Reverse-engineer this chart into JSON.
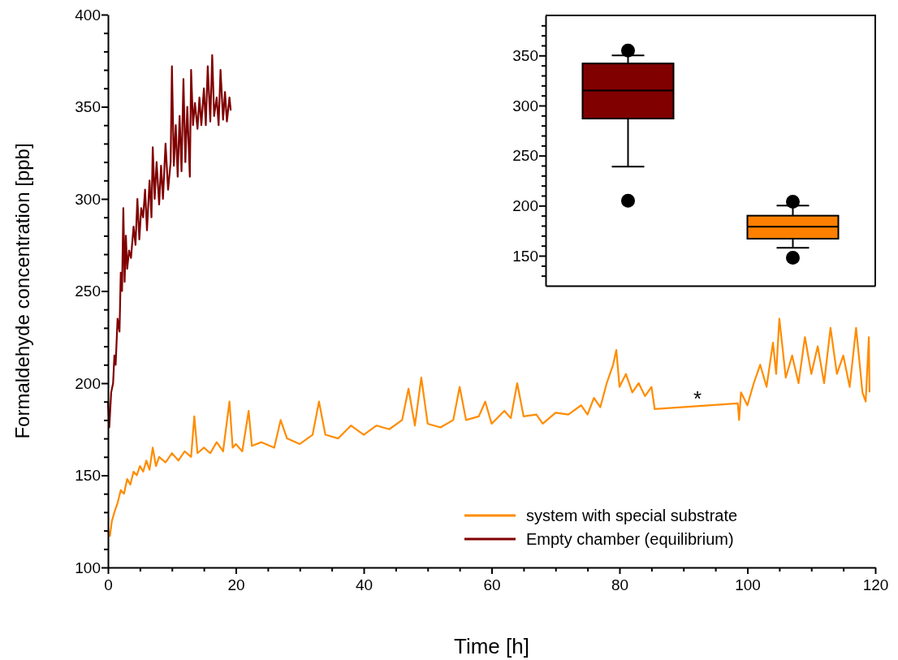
{
  "chart_data": [
    {
      "type": "line",
      "xlabel": "Time [h]",
      "ylabel": "Formaldehyde concentration [ppb]",
      "xlim": [
        0,
        120
      ],
      "ylim": [
        100,
        400
      ],
      "xticks": [
        0,
        {
          "value": 5,
          "label": null
        },
        {
          "value": 10,
          "label": null
        },
        {
          "value": 15,
          "label": null
        },
        20,
        {
          "value": 25,
          "label": null
        },
        {
          "value": 30,
          "label": null
        },
        {
          "value": 35,
          "label": null
        },
        40,
        {
          "value": 45,
          "label": null
        },
        {
          "value": 50,
          "label": null
        },
        {
          "value": 55,
          "label": null
        },
        60,
        {
          "value": 65,
          "label": null
        },
        {
          "value": 70,
          "label": null
        },
        {
          "value": 75,
          "label": null
        },
        80,
        {
          "value": 85,
          "label": null
        },
        {
          "value": 90,
          "label": null
        },
        {
          "value": 95,
          "label": null
        },
        100,
        {
          "value": 105,
          "label": null
        },
        {
          "value": 110,
          "label": null
        },
        {
          "value": 115,
          "label": null
        },
        120
      ],
      "yticks": [
        100,
        {
          "value": 110,
          "label": null
        },
        {
          "value": 120,
          "label": null
        },
        {
          "value": 130,
          "label": null
        },
        {
          "value": 140,
          "label": null
        },
        150,
        {
          "value": 160,
          "label": null
        },
        {
          "value": 170,
          "label": null
        },
        {
          "value": 180,
          "label": null
        },
        {
          "value": 190,
          "label": null
        },
        200,
        {
          "value": 210,
          "label": null
        },
        {
          "value": 220,
          "label": null
        },
        {
          "value": 230,
          "label": null
        },
        {
          "value": 240,
          "label": null
        },
        250,
        {
          "value": 260,
          "label": null
        },
        {
          "value": 270,
          "label": null
        },
        {
          "value": 280,
          "label": null
        },
        {
          "value": 290,
          "label": null
        },
        300,
        {
          "value": 310,
          "label": null
        },
        {
          "value": 320,
          "label": null
        },
        {
          "value": 330,
          "label": null
        },
        {
          "value": 340,
          "label": null
        },
        350,
        {
          "value": 360,
          "label": null
        },
        {
          "value": 370,
          "label": null
        },
        {
          "value": 380,
          "label": null
        },
        {
          "value": 390,
          "label": null
        },
        400
      ],
      "legend": "bottom right",
      "grid": false,
      "annotations": [
        "*"
      ],
      "series": [
        {
          "name": "system with special substrate",
          "color": "#ff8c00",
          "x": [
            0,
            0.3,
            0.6,
            1,
            1.5,
            2,
            2.5,
            3,
            3.5,
            4,
            4.5,
            5,
            5.5,
            6,
            6.5,
            7,
            7.5,
            8,
            9,
            10,
            11,
            12,
            13,
            13.5,
            14,
            15,
            16,
            17,
            18,
            19,
            19.5,
            20,
            21,
            22,
            22.5,
            24,
            26,
            27,
            28,
            30,
            32,
            33,
            34,
            36,
            38,
            40,
            42,
            44,
            46,
            47,
            48,
            49,
            50,
            52,
            54,
            55,
            56,
            58,
            59,
            60,
            62,
            63,
            64,
            65,
            67,
            68,
            70,
            72,
            74,
            75,
            76,
            77,
            78,
            79,
            79.5,
            80,
            81,
            82,
            83,
            84,
            85,
            85.5,
            98.5,
            98.7,
            99,
            100,
            101,
            102,
            103,
            104,
            104.5,
            105,
            106,
            107,
            108,
            109,
            110,
            111,
            112,
            113,
            114,
            115,
            116,
            117,
            118,
            118.5,
            119,
            119.1
          ],
          "values": [
            120,
            117,
            125,
            130,
            135,
            142,
            140,
            148,
            145,
            152,
            150,
            155,
            152,
            158,
            153,
            165,
            155,
            160,
            157,
            162,
            158,
            163,
            160,
            182,
            162,
            165,
            162,
            168,
            163,
            190,
            165,
            167,
            163,
            185,
            166,
            168,
            165,
            180,
            170,
            167,
            172,
            190,
            172,
            170,
            177,
            172,
            177,
            175,
            180,
            197,
            177,
            203,
            178,
            176,
            180,
            198,
            180,
            182,
            190,
            178,
            185,
            181,
            200,
            182,
            183,
            178,
            184,
            183,
            188,
            183,
            192,
            187,
            200,
            210,
            218,
            198,
            205,
            195,
            200,
            193,
            198,
            186,
            189,
            180,
            195,
            188,
            200,
            210,
            198,
            222,
            205,
            235,
            203,
            215,
            200,
            225,
            205,
            220,
            200,
            230,
            205,
            215,
            198,
            230,
            195,
            190,
            225,
            195
          ]
        },
        {
          "name": "Empty chamber (equilibrium)",
          "color": "#800000",
          "x": [
            0,
            0.2,
            0.5,
            0.8,
            1.0,
            1.2,
            1.5,
            1.8,
            2.0,
            2.2,
            2.4,
            2.6,
            2.8,
            3.0,
            3.3,
            3.6,
            4.0,
            4.3,
            4.6,
            4.9,
            5.2,
            5.5,
            5.8,
            6.1,
            6.5,
            6.8,
            7.0,
            7.3,
            7.6,
            8.0,
            8.3,
            8.6,
            9.0,
            9.4,
            9.8,
            10.0,
            10.3,
            10.6,
            10.9,
            11.2,
            11.5,
            11.8,
            12.1,
            12.4,
            12.8,
            13.0,
            13.3,
            13.6,
            14.0,
            14.3,
            14.6,
            15.0,
            15.3,
            15.6,
            16.0,
            16.3,
            16.6,
            17.0,
            17.3,
            17.6,
            18.0,
            18.3,
            18.6,
            19.0,
            19.2
          ],
          "values": [
            190,
            176,
            195,
            200,
            215,
            210,
            235,
            228,
            260,
            250,
            295,
            255,
            280,
            262,
            272,
            268,
            285,
            275,
            300,
            278,
            295,
            290,
            305,
            283,
            310,
            290,
            328,
            300,
            320,
            297,
            318,
            300,
            330,
            305,
            320,
            372,
            318,
            340,
            312,
            345,
            315,
            365,
            320,
            350,
            312,
            370,
            340,
            352,
            338,
            355,
            340,
            360,
            340,
            372,
            342,
            378,
            345,
            355,
            340,
            370,
            343,
            358,
            342,
            355,
            348
          ]
        }
      ]
    },
    {
      "type": "box",
      "categories": [
        null,
        null
      ],
      "ylim": [
        120,
        390
      ],
      "tick_labels": "y",
      "yticks": [
        {
          "value": 130,
          "label": null
        },
        {
          "value": 140,
          "label": null
        },
        150,
        {
          "value": 160,
          "label": null
        },
        {
          "value": 170,
          "label": null
        },
        {
          "value": 180,
          "label": null
        },
        {
          "value": 190,
          "label": null
        },
        200,
        {
          "value": 210,
          "label": null
        },
        {
          "value": 220,
          "label": null
        },
        {
          "value": 230,
          "label": null
        },
        {
          "value": 240,
          "label": null
        },
        250,
        {
          "value": 260,
          "label": null
        },
        {
          "value": 270,
          "label": null
        },
        {
          "value": 280,
          "label": null
        },
        {
          "value": 290,
          "label": null
        },
        300,
        {
          "value": 310,
          "label": null
        },
        {
          "value": 320,
          "label": null
        },
        {
          "value": 330,
          "label": null
        },
        {
          "value": 340,
          "label": null
        },
        350,
        {
          "value": 360,
          "label": null
        },
        {
          "value": 370,
          "label": null
        },
        {
          "value": 380,
          "label": null
        }
      ],
      "colors": [
        "#800000",
        "#ff8000"
      ],
      "boxes": [
        {
          "low": 239,
          "q1": 287,
          "median": 315,
          "q3": 342,
          "high": 350,
          "outliers": [
            205,
            355
          ]
        },
        {
          "low": 158,
          "q1": 167,
          "median": 179,
          "q3": 190,
          "high": 200,
          "outliers": [
            148,
            204
          ]
        }
      ]
    }
  ]
}
